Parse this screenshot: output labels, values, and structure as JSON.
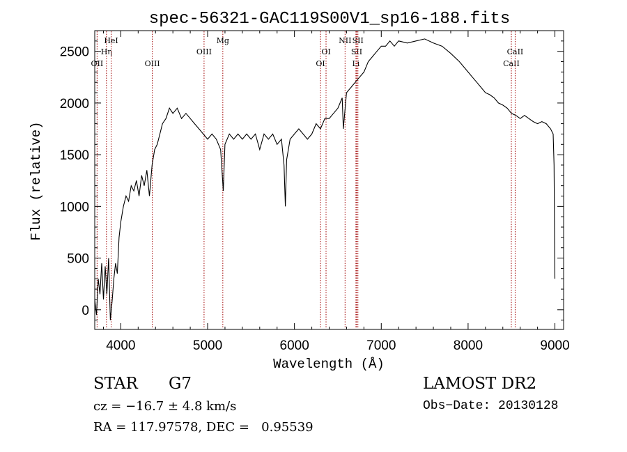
{
  "chart_data": {
    "type": "line",
    "title": "spec-56321-GAC119S00V1_sp16-188.fits",
    "xlabel": "Wavelength (Å)",
    "ylabel": "Flux (relative)",
    "xlim": [
      3700,
      9100
    ],
    "ylim": [
      -190,
      2700
    ],
    "xticks": [
      4000,
      5000,
      6000,
      7000,
      8000,
      9000
    ],
    "yticks": [
      0,
      500,
      1000,
      1500,
      2000,
      2500
    ],
    "grid": false,
    "series": [
      {
        "x": [
          3700,
          3720,
          3740,
          3760,
          3780,
          3800,
          3820,
          3840,
          3860,
          3880,
          3900,
          3920,
          3940,
          3960,
          3980,
          4000,
          4030,
          4060,
          4090,
          4120,
          4150,
          4180,
          4210,
          4240,
          4270,
          4300,
          4330,
          4360,
          4390,
          4420,
          4450,
          4480,
          4520,
          4560,
          4600,
          4650,
          4700,
          4750,
          4800,
          4850,
          4900,
          4950,
          5000,
          5050,
          5100,
          5150,
          5180,
          5200,
          5250,
          5300,
          5350,
          5400,
          5450,
          5500,
          5550,
          5600,
          5650,
          5700,
          5750,
          5800,
          5850,
          5880,
          5895,
          5910,
          5950,
          6000,
          6050,
          6100,
          6150,
          6200,
          6250,
          6300,
          6350,
          6400,
          6450,
          6500,
          6550,
          6563,
          6600,
          6650,
          6700,
          6750,
          6800,
          6850,
          6900,
          6950,
          7000,
          7050,
          7100,
          7150,
          7200,
          7300,
          7400,
          7500,
          7600,
          7700,
          7800,
          7900,
          8000,
          8050,
          8100,
          8150,
          8200,
          8250,
          8300,
          8350,
          8400,
          8450,
          8500,
          8550,
          8600,
          8650,
          8700,
          8750,
          8800,
          8850,
          8900,
          8950,
          8980,
          8990,
          9000
        ],
        "y": [
          100,
          -50,
          300,
          150,
          450,
          100,
          420,
          150,
          500,
          -100,
          80,
          300,
          450,
          350,
          700,
          850,
          1000,
          1100,
          1050,
          1200,
          1150,
          1250,
          1100,
          1300,
          1200,
          1350,
          1100,
          1400,
          1550,
          1600,
          1700,
          1800,
          1850,
          1950,
          1900,
          1950,
          1850,
          1900,
          1850,
          1800,
          1750,
          1700,
          1650,
          1700,
          1650,
          1550,
          1150,
          1600,
          1700,
          1650,
          1700,
          1650,
          1700,
          1650,
          1700,
          1550,
          1700,
          1650,
          1700,
          1600,
          1650,
          1400,
          1000,
          1450,
          1650,
          1700,
          1750,
          1700,
          1650,
          1700,
          1800,
          1750,
          1850,
          1850,
          1900,
          1950,
          2050,
          1750,
          2100,
          2150,
          2200,
          2250,
          2300,
          2400,
          2450,
          2500,
          2550,
          2550,
          2600,
          2550,
          2600,
          2580,
          2600,
          2620,
          2580,
          2550,
          2480,
          2400,
          2300,
          2250,
          2200,
          2150,
          2100,
          2080,
          2050,
          2000,
          1980,
          1950,
          1900,
          1880,
          1850,
          1880,
          1850,
          1820,
          1800,
          1820,
          1800,
          1750,
          1700,
          1400,
          300
        ]
      }
    ],
    "lines": [
      {
        "label": "OII",
        "x": 3727,
        "row": 3
      },
      {
        "label": "Hη",
        "x": 3835,
        "row": 2
      },
      {
        "label": "HeI",
        "x": 3889,
        "row": 1
      },
      {
        "label": "OIII",
        "x": 4363,
        "row": 3
      },
      {
        "label": "OIII",
        "x": 4959,
        "row": 2
      },
      {
        "label": "Mg",
        "x": 5175,
        "row": 1
      },
      {
        "label": "OI",
        "x": 6300,
        "row": 3
      },
      {
        "label": "OI",
        "x": 6364,
        "row": 2
      },
      {
        "label": "NII",
        "x": 6583,
        "row": 1
      },
      {
        "label": "Li",
        "x": 6708,
        "row": 3
      },
      {
        "label": "SII",
        "x": 6717,
        "row": 2
      },
      {
        "label": "SII",
        "x": 6731,
        "row": 1
      },
      {
        "label": "CaII",
        "x": 8498,
        "row": 3
      },
      {
        "label": "CaII",
        "x": 8542,
        "row": 2
      }
    ]
  },
  "info": {
    "object_class": "STAR",
    "subclass": "G7",
    "survey": "LAMOST DR2",
    "cz": "cz = −16.7 ± 4.8 km/s",
    "obs_date": "Obs−Date: 20130128",
    "coords": "RA = 117.97578, DEC =   0.95539"
  }
}
